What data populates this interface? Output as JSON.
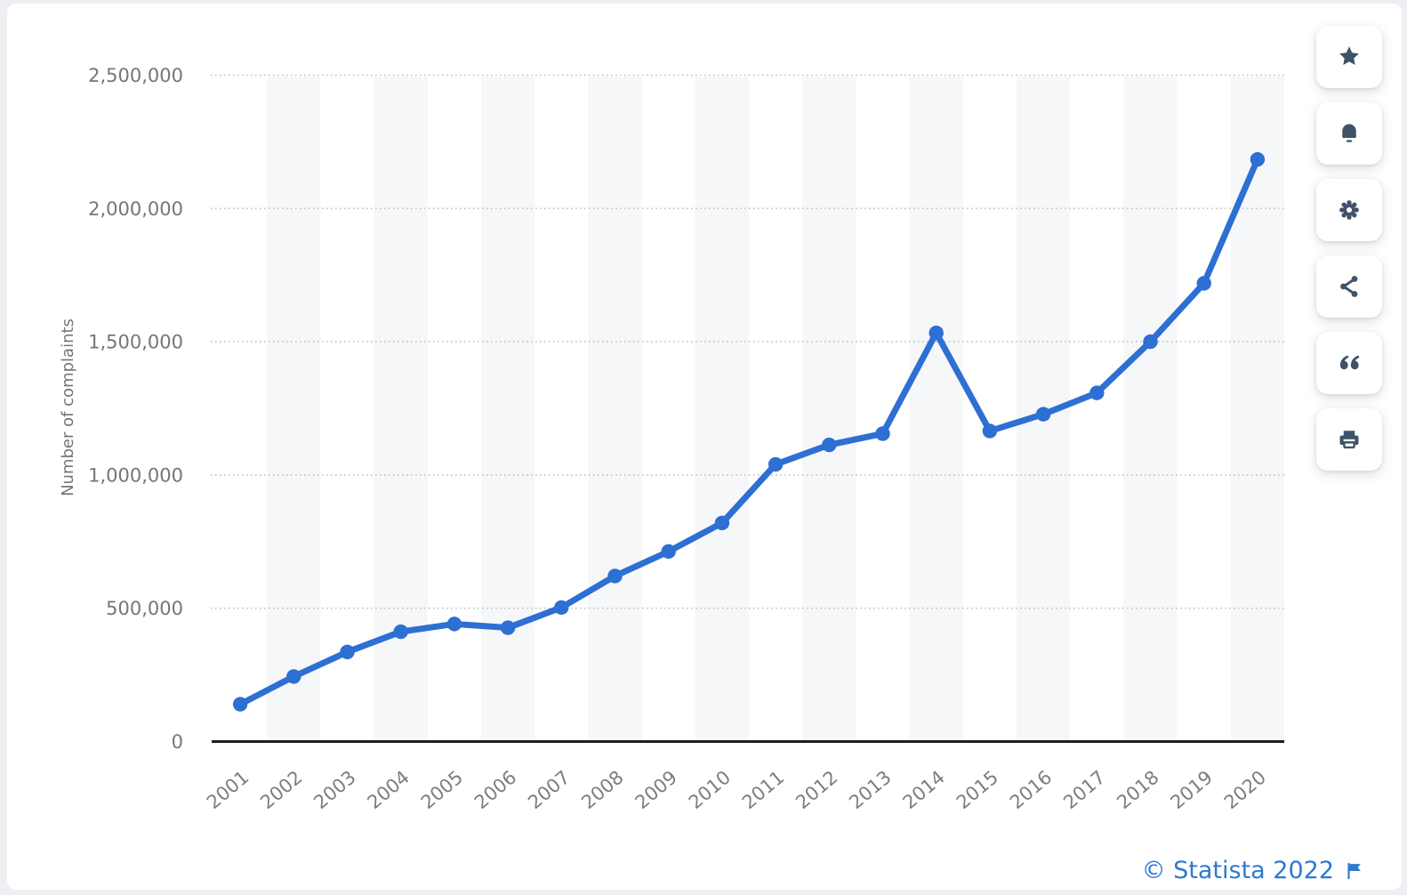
{
  "page": {
    "background_color": "#edeff3"
  },
  "card": {
    "background_color": "#ffffff"
  },
  "chart_data": {
    "type": "line",
    "title": "",
    "xlabel": "",
    "ylabel": "Number of complaints",
    "x": [
      "2001",
      "2002",
      "2003",
      "2004",
      "2005",
      "2006",
      "2007",
      "2008",
      "2009",
      "2010",
      "2011",
      "2012",
      "2013",
      "2014",
      "2015",
      "2016",
      "2017",
      "2018",
      "2019",
      "2020"
    ],
    "values": [
      140000,
      244000,
      336000,
      412000,
      441000,
      427000,
      503000,
      621000,
      713000,
      820000,
      1040000,
      1113000,
      1155000,
      1533000,
      1165000,
      1228000,
      1308000,
      1500000,
      1719000,
      2184000
    ],
    "ylim": [
      0,
      2500000
    ],
    "yticks": [
      0,
      500000,
      1000000,
      1500000,
      2000000,
      2500000
    ],
    "ytick_labels": [
      "0",
      "500,000",
      "1,000,000",
      "1,500,000",
      "2,000,000",
      "2,500,000"
    ],
    "grid": "horizontal dotted gridlines at each y tick; alternating light-gray vertical year bands",
    "legend": null,
    "line_color": "#2d6fd3",
    "marker": "filled circle",
    "axis_color": "#1f1f1f",
    "tick_label_color": "#7b7b7b",
    "gridline_color": "#c2c2c2",
    "stripe_color": "#f6f7f9"
  },
  "toolbar": {
    "icon_color": "#3e5368",
    "buttons": [
      {
        "name": "favorite",
        "icon": "star-icon"
      },
      {
        "name": "notifications",
        "icon": "bell-icon"
      },
      {
        "name": "settings",
        "icon": "gear-icon"
      },
      {
        "name": "share",
        "icon": "share-icon"
      },
      {
        "name": "cite",
        "icon": "quote-icon"
      },
      {
        "name": "print",
        "icon": "print-icon"
      }
    ]
  },
  "credit": {
    "text": "© Statista 2022",
    "flag_icon": "flag-icon",
    "color": "#2e79d2"
  }
}
